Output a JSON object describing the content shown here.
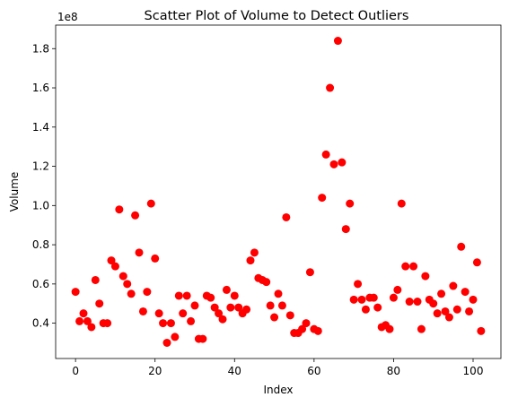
{
  "chart_data": {
    "type": "scatter",
    "title": "Scatter Plot of Volume to Detect Outliers",
    "xlabel": "Index",
    "ylabel": "Volume",
    "y_offset_label": "1e8",
    "y_scale": 100000000,
    "xlim": [
      -5,
      107
    ],
    "ylim": [
      0.22,
      1.92
    ],
    "x_ticks": [
      0,
      20,
      40,
      60,
      80,
      100
    ],
    "y_ticks": [
      0.4,
      0.6,
      0.8,
      1.0,
      1.2,
      1.4,
      1.6,
      1.8
    ],
    "y_tick_labels": [
      "0.4",
      "0.6",
      "0.8",
      "1.0",
      "1.2",
      "1.4",
      "1.6",
      "1.8"
    ],
    "grid": false,
    "marker_color": "#ff0000",
    "points": {
      "x": [
        0,
        1,
        2,
        3,
        4,
        5,
        6,
        7,
        8,
        9,
        10,
        11,
        12,
        13,
        14,
        15,
        16,
        17,
        18,
        19,
        20,
        21,
        22,
        23,
        24,
        25,
        26,
        27,
        28,
        29,
        30,
        31,
        32,
        33,
        34,
        35,
        36,
        37,
        38,
        39,
        40,
        41,
        42,
        43,
        44,
        45,
        46,
        47,
        48,
        49,
        50,
        51,
        52,
        53,
        54,
        55,
        56,
        57,
        58,
        59,
        60,
        61,
        62,
        63,
        64,
        65,
        66,
        67,
        68,
        69,
        70,
        71,
        72,
        73,
        74,
        75,
        76,
        77,
        78,
        79,
        80,
        81,
        82,
        83,
        84,
        85,
        86,
        87,
        88,
        89,
        90,
        91,
        92,
        93,
        94,
        95,
        96,
        97,
        98,
        99,
        100,
        101,
        102
      ],
      "y": [
        0.56,
        0.41,
        0.45,
        0.41,
        0.38,
        0.62,
        0.5,
        0.4,
        0.4,
        0.72,
        0.69,
        0.98,
        0.64,
        0.6,
        0.55,
        0.95,
        0.76,
        0.46,
        0.56,
        1.01,
        0.73,
        0.45,
        0.4,
        0.3,
        0.4,
        0.33,
        0.54,
        0.45,
        0.54,
        0.41,
        0.49,
        0.32,
        0.32,
        0.54,
        0.53,
        0.48,
        0.45,
        0.42,
        0.57,
        0.48,
        0.54,
        0.48,
        0.45,
        0.47,
        0.72,
        0.76,
        0.63,
        0.62,
        0.61,
        0.49,
        0.43,
        0.55,
        0.49,
        0.94,
        0.44,
        0.35,
        0.35,
        0.37,
        0.4,
        0.66,
        0.37,
        0.36,
        1.04,
        1.26,
        1.6,
        1.21,
        1.84,
        1.22,
        0.88,
        1.01,
        0.52,
        0.6,
        0.52,
        0.47,
        0.53,
        0.53,
        0.48,
        0.38,
        0.39,
        0.37,
        0.53,
        0.57,
        1.01,
        0.69,
        0.51,
        0.69,
        0.51,
        0.37,
        0.64,
        0.52,
        0.5,
        0.45,
        0.55,
        0.46,
        0.43,
        0.59,
        0.47,
        0.79,
        0.56,
        0.46,
        0.52,
        0.71,
        0.36
      ]
    }
  }
}
